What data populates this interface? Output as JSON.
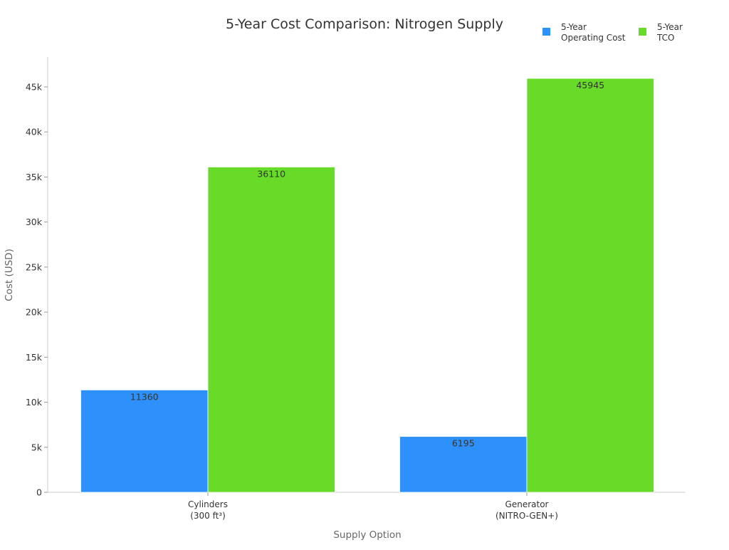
{
  "chart_data": {
    "type": "bar",
    "title": "5-Year Cost Comparison: Nitrogen Supply",
    "xlabel": "Supply Option",
    "ylabel": "Cost (USD)",
    "categories": [
      [
        "Cylinders",
        "(300 ft³)"
      ],
      [
        "Generator",
        "(NITRO-GEN+)"
      ]
    ],
    "series": [
      {
        "name": [
          "5-Year",
          "Operating Cost"
        ],
        "values": [
          11360,
          6195
        ],
        "color": "#2e91fb"
      },
      {
        "name": [
          "5-Year",
          "TCO"
        ],
        "values": [
          36110,
          45945
        ],
        "color": "#68da28"
      }
    ],
    "ylim": [
      0,
      48000
    ],
    "yticks": [
      0,
      5000,
      10000,
      15000,
      20000,
      25000,
      30000,
      35000,
      40000,
      45000
    ],
    "ytick_labels": [
      "0",
      "5k",
      "10k",
      "15k",
      "20k",
      "25k",
      "30k",
      "35k",
      "40k",
      "45k"
    ],
    "grid": false,
    "legend_position": "top-right",
    "data_labels": true
  }
}
